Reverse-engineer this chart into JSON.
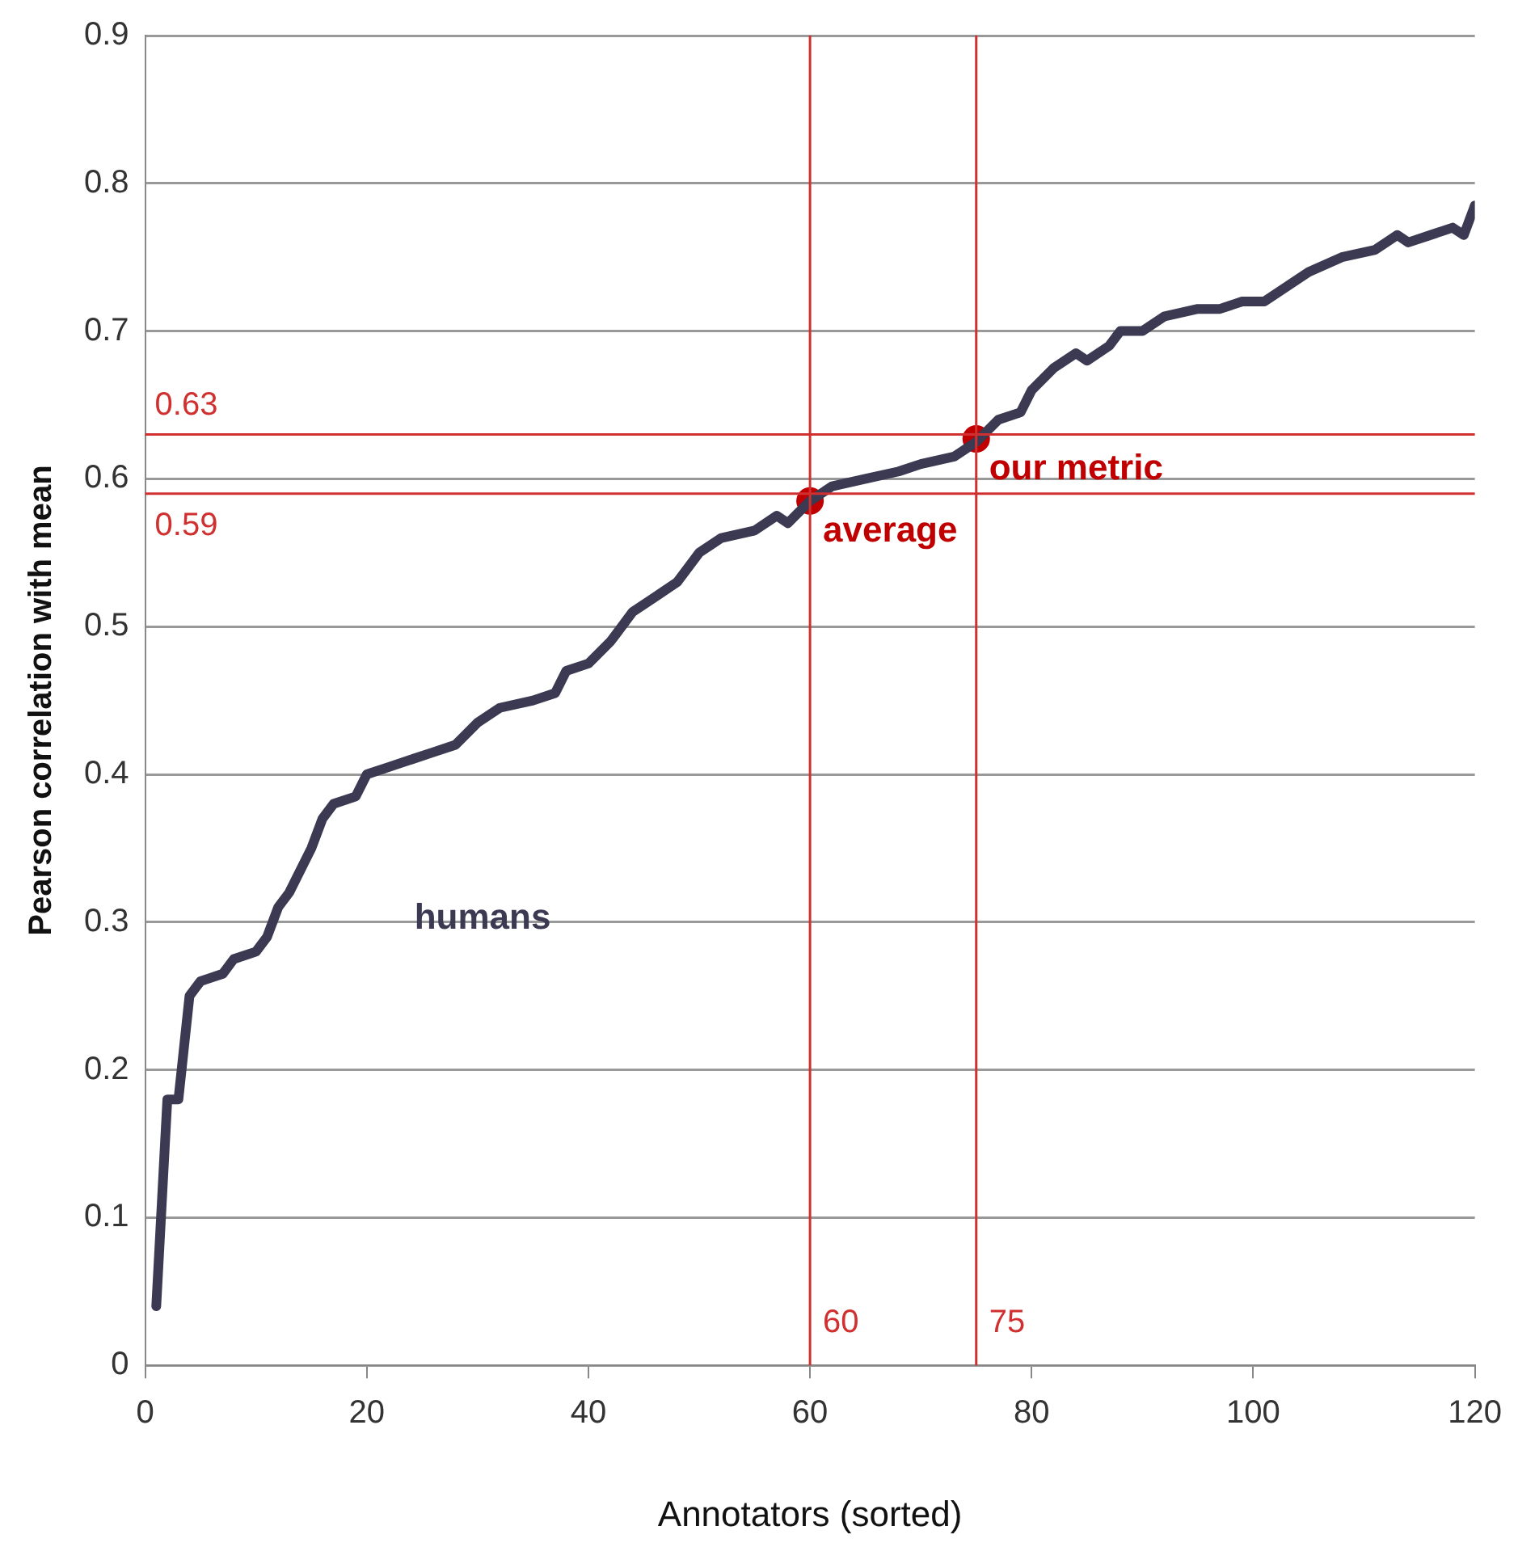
{
  "chart_data": {
    "type": "line",
    "xlabel": "Annotators (sorted)",
    "ylabel": "Pearson correlation with mean",
    "xlim": [
      0,
      120
    ],
    "xticks": [
      0,
      20,
      40,
      60,
      80,
      100,
      120
    ],
    "ylim": [
      0,
      0.9
    ],
    "yticks": [
      0,
      0.1,
      0.2,
      0.3,
      0.4,
      0.5,
      0.6,
      0.7,
      0.8,
      0.9
    ],
    "grid": "y",
    "legend": false,
    "marker": "none",
    "line_style": "solid",
    "series": [
      {
        "name": "humans",
        "color": "#3b3a52",
        "x": [
          1,
          2,
          3,
          4,
          5,
          7,
          8,
          10,
          11,
          12,
          13,
          15,
          16,
          17,
          19,
          20,
          22,
          24,
          26,
          28,
          30,
          32,
          35,
          37,
          38,
          40,
          42,
          44,
          46,
          48,
          50,
          52,
          55,
          57,
          58,
          60,
          62,
          65,
          68,
          70,
          73,
          75,
          77,
          79,
          80,
          82,
          84,
          85,
          87,
          88,
          90,
          92,
          95,
          97,
          99,
          101,
          103,
          105,
          108,
          111,
          113,
          114,
          116,
          118,
          119,
          120
        ],
        "values": [
          0.04,
          0.18,
          0.18,
          0.25,
          0.26,
          0.265,
          0.275,
          0.28,
          0.29,
          0.31,
          0.32,
          0.35,
          0.37,
          0.38,
          0.385,
          0.4,
          0.405,
          0.41,
          0.415,
          0.42,
          0.435,
          0.445,
          0.45,
          0.455,
          0.47,
          0.475,
          0.49,
          0.51,
          0.52,
          0.53,
          0.55,
          0.56,
          0.565,
          0.575,
          0.57,
          0.585,
          0.595,
          0.6,
          0.605,
          0.61,
          0.615,
          0.625,
          0.64,
          0.645,
          0.66,
          0.675,
          0.685,
          0.68,
          0.69,
          0.7,
          0.7,
          0.71,
          0.715,
          0.715,
          0.72,
          0.72,
          0.73,
          0.74,
          0.75,
          0.755,
          0.765,
          0.76,
          0.765,
          0.77,
          0.765,
          0.785
        ]
      },
      {
        "type": "scatter",
        "color": "#c00000",
        "marker": "circle",
        "x": [
          60,
          75
        ],
        "values": [
          0.585,
          0.627
        ]
      }
    ],
    "ref_lines": [
      {
        "axis": "y",
        "value": 0.63,
        "label": "0.63",
        "color": "#d03030"
      },
      {
        "axis": "y",
        "value": 0.59,
        "label": "0.59",
        "color": "#d03030"
      },
      {
        "axis": "x",
        "value": 60,
        "label": "60",
        "color": "#d03030"
      },
      {
        "axis": "x",
        "value": 75,
        "label": "75",
        "color": "#d03030"
      }
    ],
    "annotations": [
      {
        "text": "average",
        "x": 60,
        "y": 0.585
      },
      {
        "text": "our metric",
        "x": 75,
        "y": 0.627
      }
    ]
  }
}
